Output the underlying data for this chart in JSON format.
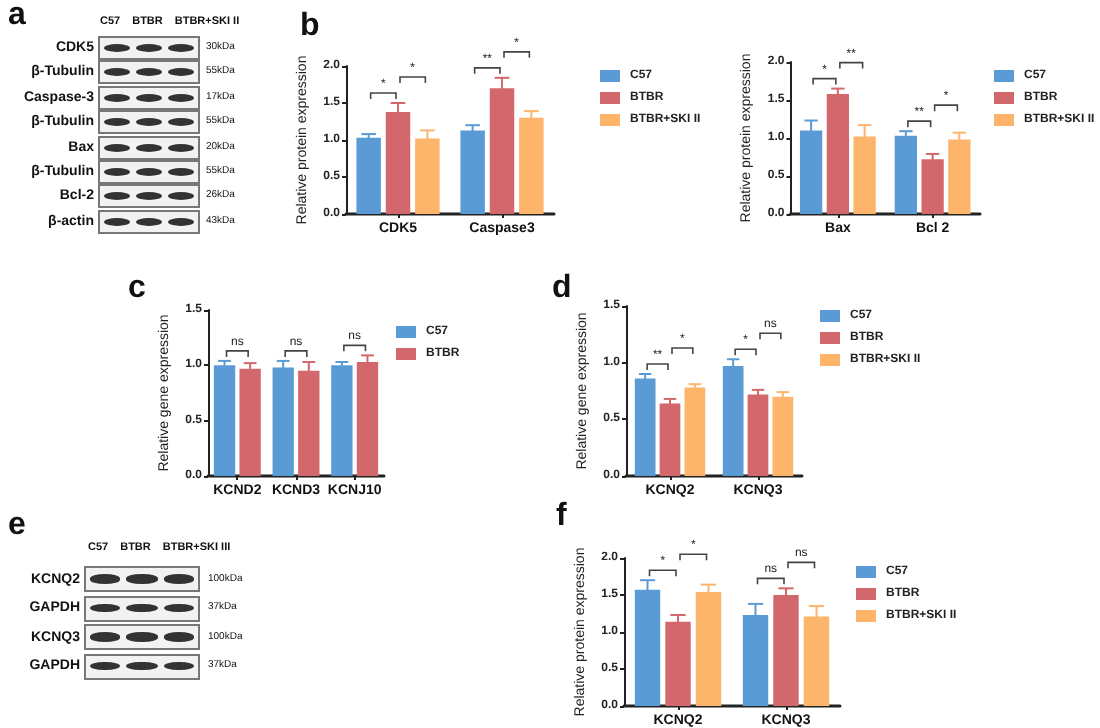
{
  "chart_data": [
    {
      "type": "other",
      "title": "a",
      "categories": [
        "C57",
        "BTBR",
        "BTBR+SKI II"
      ],
      "y_categories": [
        "CDK5",
        "β-Tubulin",
        "Caspase-3",
        "β-Tubulin",
        "Bax",
        "β-Tubulin",
        "Bcl-2",
        "β-actin"
      ],
      "y2_categories": [
        "30kDa",
        "55kDa",
        "17kDa",
        "55kDa",
        "20kDa",
        "55kDa",
        "26kDa",
        "43kDa"
      ]
    },
    {
      "type": "bar",
      "title": "b",
      "ylabel": "Relative protein expression",
      "categories": [
        "CDK5",
        "Caspase3"
      ],
      "series": [
        {
          "name": "C57",
          "color": "#5b9bd5",
          "values": [
            1.03,
            1.13
          ],
          "errors": [
            0.05,
            0.07
          ]
        },
        {
          "name": "BTBR",
          "color": "#d2686c",
          "values": [
            1.38,
            1.7
          ],
          "errors": [
            0.12,
            0.14
          ]
        },
        {
          "name": "BTBR+SKI II",
          "color": "#fdb46b",
          "values": [
            1.02,
            1.3
          ],
          "errors": [
            0.11,
            0.09
          ]
        }
      ],
      "ylim": [
        0,
        2
      ],
      "yticks": [
        {
          "value": 0,
          "label": "0.0"
        },
        {
          "value": 0.5,
          "label": "0.5"
        },
        {
          "value": 1,
          "label": "1.0"
        },
        {
          "value": 1.5,
          "label": "1.5"
        },
        {
          "value": 2,
          "label": "2.0"
        }
      ],
      "legend": "right",
      "annotations": [
        "*",
        "*",
        "**",
        "*"
      ]
    },
    {
      "type": "bar",
      "ylabel": "Relative protein expression",
      "categories": [
        "Bax",
        "Bcl 2"
      ],
      "series": [
        {
          "name": "C57",
          "color": "#5b9bd5",
          "values": [
            1.1,
            1.03
          ],
          "errors": [
            0.13,
            0.06
          ]
        },
        {
          "name": "BTBR",
          "color": "#d2686c",
          "values": [
            1.58,
            0.72
          ],
          "errors": [
            0.07,
            0.07
          ]
        },
        {
          "name": "BTBR+SKI II",
          "color": "#fdb46b",
          "values": [
            1.02,
            0.98
          ],
          "errors": [
            0.15,
            0.09
          ]
        }
      ],
      "ylim": [
        0,
        2
      ],
      "yticks": [
        {
          "value": 0,
          "label": "0.0"
        },
        {
          "value": 0.5,
          "label": "0.5"
        },
        {
          "value": 1,
          "label": "1.0"
        },
        {
          "value": 1.5,
          "label": "1.5"
        },
        {
          "value": 2,
          "label": "2.0"
        }
      ],
      "legend": "right",
      "annotations": [
        "*",
        "**",
        "**",
        "*"
      ]
    },
    {
      "type": "bar",
      "title": "c",
      "ylabel": "Relative gene expression",
      "categories": [
        "KCND2",
        "KCND3",
        "KCNJ10"
      ],
      "series": [
        {
          "name": "C57",
          "color": "#5b9bd5",
          "values": [
            1.0,
            0.98,
            1.0
          ],
          "errors": [
            0.04,
            0.06,
            0.03
          ]
        },
        {
          "name": "BTBR",
          "color": "#d2686c",
          "values": [
            0.97,
            0.95,
            1.03
          ],
          "errors": [
            0.05,
            0.08,
            0.06
          ]
        }
      ],
      "ylim": [
        0,
        1.5
      ],
      "yticks": [
        {
          "value": 0,
          "label": "0.0"
        },
        {
          "value": 0.5,
          "label": "0.5"
        },
        {
          "value": 1,
          "label": "1.0"
        },
        {
          "value": 1.5,
          "label": "1.5"
        }
      ],
      "legend": "right",
      "annotations": [
        "ns",
        "ns",
        "ns"
      ]
    },
    {
      "type": "bar",
      "title": "d",
      "ylabel": "Relative gene expression",
      "categories": [
        "KCNQ2",
        "KCNQ3"
      ],
      "series": [
        {
          "name": "C57",
          "color": "#5b9bd5",
          "values": [
            0.86,
            0.97
          ],
          "errors": [
            0.04,
            0.06
          ]
        },
        {
          "name": "BTBR",
          "color": "#d2686c",
          "values": [
            0.64,
            0.72
          ],
          "errors": [
            0.04,
            0.04
          ]
        },
        {
          "name": "BTBR+SKI II",
          "color": "#fdb46b",
          "values": [
            0.78,
            0.7
          ],
          "errors": [
            0.03,
            0.04
          ]
        }
      ],
      "ylim": [
        0,
        1.5
      ],
      "yticks": [
        {
          "value": 0,
          "label": "0.0"
        },
        {
          "value": 0.5,
          "label": "0.5"
        },
        {
          "value": 1,
          "label": "1.0"
        },
        {
          "value": 1.5,
          "label": "1.5"
        }
      ],
      "legend": "right",
      "annotations": [
        "**",
        "*",
        "*",
        "ns"
      ]
    },
    {
      "type": "other",
      "title": "e",
      "categories": [
        "C57",
        "BTBR",
        "BTBR+SKI III"
      ],
      "y_categories": [
        "KCNQ2",
        "GAPDH",
        "KCNQ3",
        "GAPDH"
      ],
      "y2_categories": [
        "100kDa",
        "37kDa",
        "100kDa",
        "37kDa"
      ]
    },
    {
      "type": "bar",
      "title": "f",
      "ylabel": "Relative protein expression",
      "categories": [
        "KCNQ2",
        "KCNQ3"
      ],
      "series": [
        {
          "name": "C57",
          "color": "#5b9bd5",
          "values": [
            1.57,
            1.23
          ],
          "errors": [
            0.13,
            0.15
          ]
        },
        {
          "name": "BTBR",
          "color": "#d2686c",
          "values": [
            1.14,
            1.5
          ],
          "errors": [
            0.09,
            0.09
          ]
        },
        {
          "name": "BTBR+SKI II",
          "color": "#fdb46b",
          "values": [
            1.54,
            1.21
          ],
          "errors": [
            0.1,
            0.14
          ]
        }
      ],
      "ylim": [
        0,
        2
      ],
      "yticks": [
        {
          "value": 0,
          "label": "0.0"
        },
        {
          "value": 0.5,
          "label": "0.5"
        },
        {
          "value": 1,
          "label": "1.0"
        },
        {
          "value": 1.5,
          "label": "1.5"
        },
        {
          "value": 2,
          "label": "2.0"
        }
      ],
      "legend": "right",
      "annotations": [
        "*",
        "*",
        "ns",
        "ns"
      ]
    }
  ]
}
